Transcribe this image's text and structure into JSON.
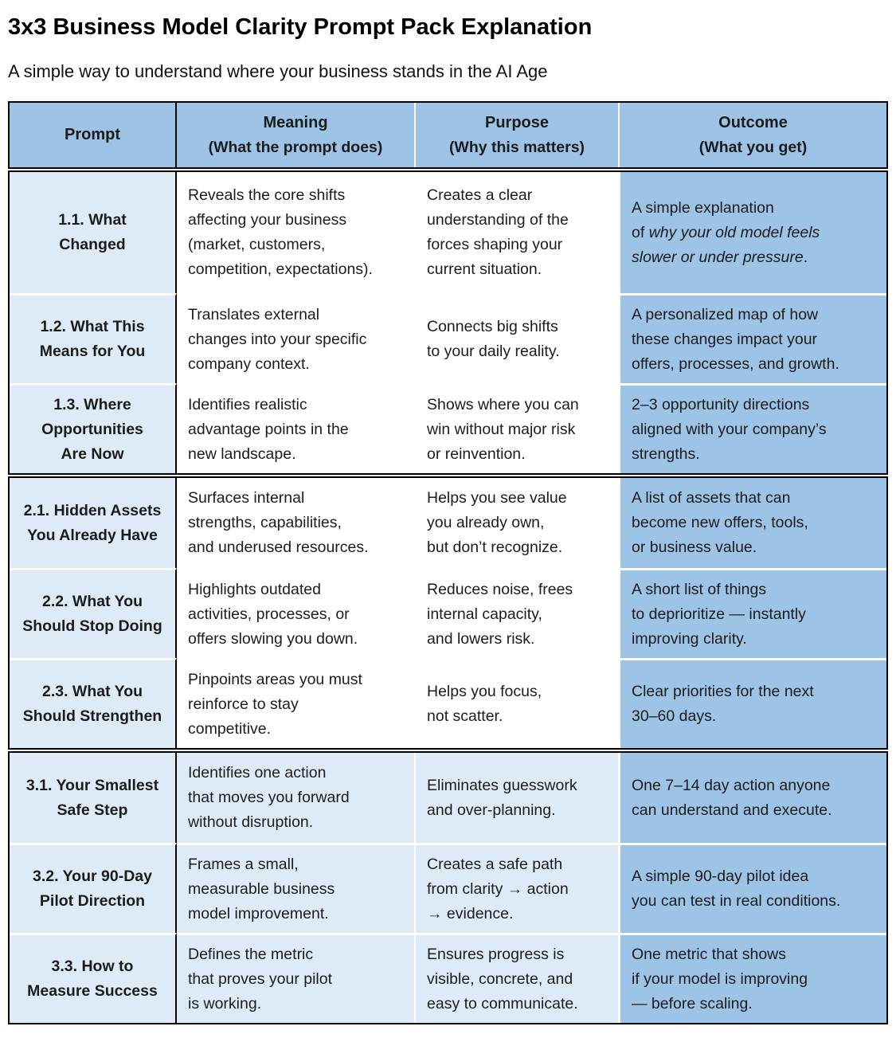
{
  "page": {
    "title": "3x3 Business Model Clarity Prompt Pack Explanation",
    "subtitle": "A simple way to understand where your business stands in the AI Age"
  },
  "colors": {
    "header_and_outcome_blue": "#9DC3E6",
    "light_blue": "#DEEBF7",
    "border_black": "#000000",
    "row_divider_white": "#FFFFFF",
    "text": "#1C1C1C"
  },
  "table": {
    "columns": [
      {
        "label": "Prompt",
        "sub": ""
      },
      {
        "label": "Meaning",
        "sub": "(What the prompt does)"
      },
      {
        "label": "Purpose",
        "sub": "(Why this matters)"
      },
      {
        "label": "Outcome",
        "sub": "(What you get)"
      }
    ],
    "groups": [
      {
        "rows": [
          {
            "prompt": "1.1. What\nChanged",
            "meaning": "Reveals the core shifts\naffecting your business\n(market, customers,\ncompetition, expectations).",
            "purpose": "Creates a clear\nunderstanding of the\nforces shaping your\ncurrent situation.",
            "outcome_pre": "A simple explanation\nof ",
            "outcome_italic": "why your old model feels\nslower or under pressure",
            "outcome_post": "."
          },
          {
            "prompt": "1.2. What This\nMeans for You",
            "meaning": "Translates external\nchanges into your specific\ncompany context.",
            "purpose": "Connects big shifts\nto your daily reality.",
            "outcome": "A personalized map of how\nthese changes impact your\noffers, processes, and growth."
          },
          {
            "prompt": "1.3. Where\nOpportunities\nAre Now",
            "meaning": "Identifies realistic\nadvantage points in the\nnew landscape.",
            "purpose": "Shows where you can\nwin without major risk\nor reinvention.",
            "outcome": "2–3 opportunity directions\naligned with your company’s\nstrengths."
          }
        ]
      },
      {
        "rows": [
          {
            "prompt": "2.1. Hidden Assets\nYou Already Have",
            "meaning": "Surfaces internal\nstrengths, capabilities,\nand underused resources.",
            "purpose": "Helps you see value\nyou already own,\nbut don’t recognize.",
            "outcome": "A list of assets that can\nbecome new offers, tools,\nor business value."
          },
          {
            "prompt": "2.2. What You\nShould Stop Doing",
            "meaning": "Highlights outdated\nactivities, processes, or\noffers slowing you down.",
            "purpose": "Reduces noise, frees\ninternal capacity,\nand lowers risk.",
            "outcome": "A short list of things\nto deprioritize — instantly\nimproving clarity."
          },
          {
            "prompt": "2.3. What You\nShould Strengthen",
            "meaning": "Pinpoints areas you must\nreinforce to stay\ncompetitive.",
            "purpose": "Helps you focus,\nnot scatter.",
            "outcome": "Clear priorities for the next\n30–60 days."
          }
        ]
      },
      {
        "rows": [
          {
            "prompt": "3.1. Your Smallest\nSafe Step",
            "meaning": "Identifies one action\nthat moves you forward\nwithout disruption.",
            "purpose": "Eliminates guesswork\nand over-planning.",
            "outcome": "One 7–14 day action anyone\ncan understand and execute."
          },
          {
            "prompt": "3.2. Your 90-Day\nPilot Direction",
            "meaning": "Frames a small,\nmeasurable business\nmodel improvement.",
            "purpose": "Creates a safe path\nfrom clarity → action\n→ evidence.",
            "outcome": "A simple 90-day pilot idea\nyou can test in real conditions."
          },
          {
            "prompt": "3.3. How to\nMeasure Success",
            "meaning": "Defines the metric\nthat proves your pilot\nis working.",
            "purpose": "Ensures progress is\nvisible, concrete, and\neasy to communicate.",
            "outcome": "One metric that shows\nif your model is improving\n— before scaling."
          }
        ]
      }
    ]
  }
}
